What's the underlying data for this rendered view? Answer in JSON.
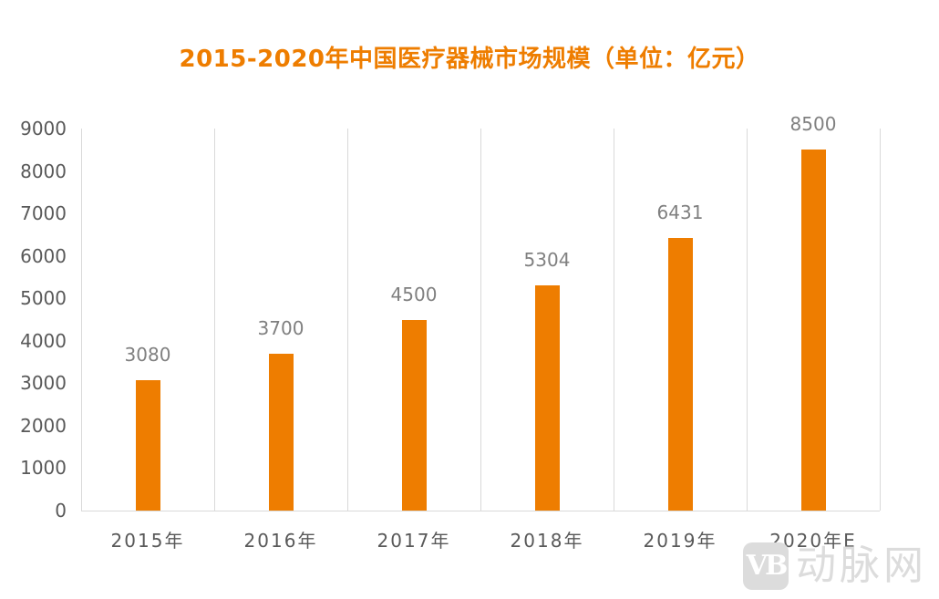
{
  "chart_data": {
    "type": "bar",
    "title": "2015-2020年中国医疗器械市场规模（单位：亿元）",
    "categories": [
      "2015年",
      "2016年",
      "2017年",
      "2018年",
      "2019年",
      "2020年E"
    ],
    "values": [
      3080,
      3700,
      4500,
      5304,
      6431,
      8500
    ],
    "data_labels": [
      "3080",
      "3700",
      "4500",
      "5304",
      "6431",
      "8500"
    ],
    "xlabel": "",
    "ylabel": "",
    "ylim": [
      0,
      9000
    ],
    "yticks": [
      "0",
      "1000",
      "2000",
      "3000",
      "4000",
      "5000",
      "6000",
      "7000",
      "8000",
      "9000"
    ],
    "grid": "vertical category separators",
    "legend": "none",
    "bar_color": "#ee7d00"
  },
  "watermark": {
    "logo": "VB",
    "text": "动脉网"
  }
}
